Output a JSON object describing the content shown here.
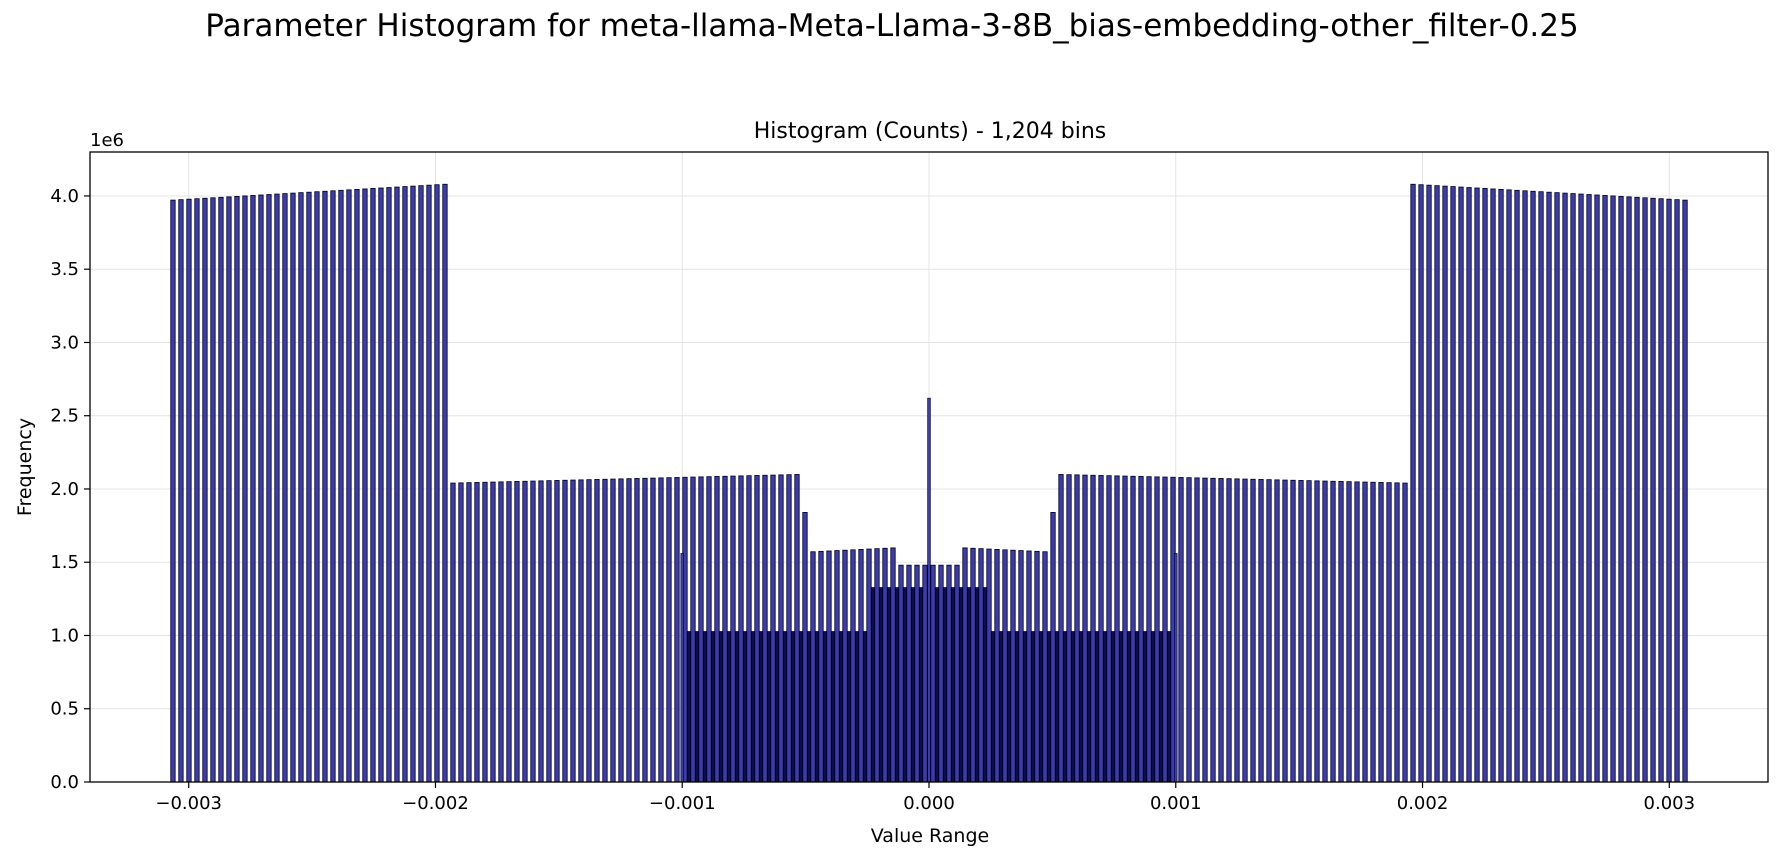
{
  "figure": {
    "suptitle": "Parameter Histogram for meta-llama-Meta-Llama-3-8B_bias-embedding-other_filter-0.25"
  },
  "chart_data": {
    "type": "bar",
    "title": "Histogram (Counts) - 1,204 bins",
    "xlabel": "Value Range",
    "ylabel": "Frequency",
    "y_offset_text": "1e6",
    "xlim": [
      -0.0034,
      0.0034
    ],
    "ylim": [
      0,
      4300000
    ],
    "x_ticks": [
      -0.003,
      -0.002,
      -0.001,
      0.0,
      0.001,
      0.002,
      0.003
    ],
    "x_tick_labels": [
      "−0.003",
      "−0.002",
      "−0.001",
      "0.000",
      "0.001",
      "0.002",
      "0.003"
    ],
    "y_ticks": [
      0,
      500000,
      1000000,
      1500000,
      2000000,
      2500000,
      3000000,
      3500000,
      4000000
    ],
    "y_tick_labels": [
      "0.0",
      "0.5",
      "1.0",
      "1.5",
      "2.0",
      "2.5",
      "3.0",
      "3.5",
      "4.0"
    ],
    "grid": true,
    "bar_color": "#3b3bb5",
    "edge_color": "#000000",
    "num_bins": 1204,
    "data_range": [
      -0.00308,
      0.00308
    ],
    "envelope": [
      {
        "x_start": -0.00308,
        "x_end": -0.00196,
        "y_start": 3970000,
        "y_end": 4080000
      },
      {
        "x_start": -0.00196,
        "x_end": -0.00194,
        "y_start": 3070000,
        "y_end": 3070000
      },
      {
        "x_start": -0.00194,
        "x_end": -0.00051,
        "y_start": 2040000,
        "y_end": 2100000
      },
      {
        "x_start": -0.00051,
        "x_end": -0.00049,
        "y_start": 1840000,
        "y_end": 1840000
      },
      {
        "x_start": -0.00049,
        "x_end": -0.00012,
        "y_start": 1570000,
        "y_end": 1600000
      },
      {
        "x_start": -0.00012,
        "x_end": 0.00012,
        "y_start": 1480000,
        "y_end": 1480000
      },
      {
        "x_start": 0.00012,
        "x_end": 0.00049,
        "y_start": 1600000,
        "y_end": 1570000
      },
      {
        "x_start": 0.00049,
        "x_end": 0.00051,
        "y_start": 1840000,
        "y_end": 1840000
      },
      {
        "x_start": 0.00051,
        "x_end": 0.00194,
        "y_start": 2100000,
        "y_end": 2040000
      },
      {
        "x_start": 0.00194,
        "x_end": 0.00196,
        "y_start": 3070000,
        "y_end": 3070000
      },
      {
        "x_start": 0.00196,
        "x_end": 0.00308,
        "y_start": 4080000,
        "y_end": 3970000
      }
    ],
    "inner_layers": [
      {
        "x_start": -0.00099,
        "x_end": 0.00099,
        "y": 1030000
      },
      {
        "x_start": -0.00024,
        "x_end": 0.00024,
        "y": 1330000
      }
    ],
    "spikes": [
      {
        "x": -0.001,
        "y": 1560000
      },
      {
        "x": 0.001,
        "y": 1560000
      },
      {
        "x": 0.0,
        "y": 2620000
      }
    ]
  }
}
